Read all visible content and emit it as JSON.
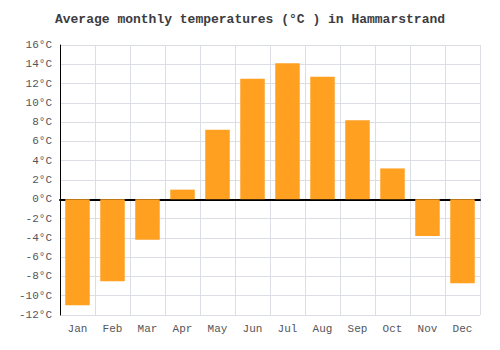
{
  "chart_data": {
    "type": "bar",
    "title": "Average monthly temperatures (°C ) in Hammarstrand",
    "categories": [
      "Jan",
      "Feb",
      "Mar",
      "Apr",
      "May",
      "Jun",
      "Jul",
      "Aug",
      "Sep",
      "Oct",
      "Nov",
      "Dec"
    ],
    "values": [
      -11,
      -8.5,
      -4.2,
      1,
      7.2,
      12.5,
      14.1,
      12.7,
      8.2,
      3.2,
      -3.8,
      -8.7
    ],
    "color": "#FFA020",
    "ylim": [
      -12,
      16
    ],
    "yticks": [
      {
        "value": -12,
        "label": "-12°C"
      },
      {
        "value": -10,
        "label": "-10°C"
      },
      {
        "value": -8,
        "label": "-8°C"
      },
      {
        "value": -6,
        "label": "-6°C"
      },
      {
        "value": -4,
        "label": "-4°C"
      },
      {
        "value": -2,
        "label": "-2°C"
      },
      {
        "value": 0,
        "label": "0°C"
      },
      {
        "value": 2,
        "label": "2°C"
      },
      {
        "value": 4,
        "label": "4°C"
      },
      {
        "value": 6,
        "label": "6°C"
      },
      {
        "value": 8,
        "label": "8°C"
      },
      {
        "value": 10,
        "label": "10°C"
      },
      {
        "value": 12,
        "label": "12°C"
      },
      {
        "value": 14,
        "label": "14°C"
      },
      {
        "value": 16,
        "label": "16°C"
      }
    ],
    "grid": true
  }
}
